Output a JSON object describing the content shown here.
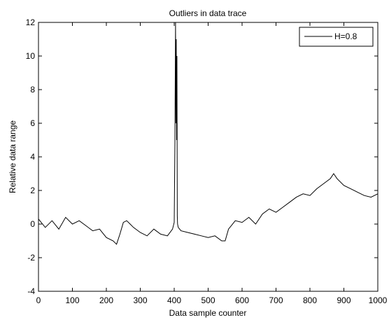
{
  "chart_data": {
    "type": "line",
    "title": "Outliers in data trace",
    "xlabel": "Data sample counter",
    "ylabel": "Relative data range",
    "xlim": [
      0,
      1000
    ],
    "ylim": [
      -4,
      12
    ],
    "xticks": [
      0,
      100,
      200,
      300,
      400,
      500,
      600,
      700,
      800,
      900,
      1000
    ],
    "yticks": [
      -4,
      -2,
      0,
      2,
      4,
      6,
      8,
      10,
      12
    ],
    "grid": false,
    "legend": {
      "position": "top-right",
      "entries": [
        "H=0.8"
      ]
    },
    "series": [
      {
        "name": "H=0.8",
        "color": "#000000",
        "x": [
          0,
          20,
          40,
          60,
          80,
          100,
          120,
          140,
          160,
          180,
          200,
          220,
          230,
          240,
          250,
          260,
          270,
          280,
          300,
          320,
          340,
          360,
          380,
          395,
          400,
          402,
          404,
          405,
          406,
          407,
          408,
          409,
          410,
          412,
          420,
          440,
          460,
          480,
          500,
          520,
          540,
          550,
          560,
          580,
          600,
          620,
          640,
          660,
          680,
          700,
          720,
          740,
          760,
          780,
          800,
          820,
          840,
          860,
          870,
          880,
          900,
          920,
          940,
          960,
          980,
          1000
        ],
        "y": [
          0.3,
          -0.2,
          0.2,
          -0.3,
          0.4,
          0.0,
          0.2,
          -0.1,
          -0.4,
          -0.3,
          -0.8,
          -1.0,
          -1.2,
          -0.6,
          0.1,
          0.2,
          0.0,
          -0.2,
          -0.5,
          -0.7,
          -0.3,
          -0.6,
          -0.7,
          -0.3,
          0.1,
          4.9,
          12.0,
          6.0,
          11.0,
          5.0,
          10.0,
          0.5,
          0.0,
          -0.2,
          -0.4,
          -0.5,
          -0.6,
          -0.7,
          -0.8,
          -0.7,
          -1.0,
          -1.0,
          -0.3,
          0.2,
          0.1,
          0.4,
          0.0,
          0.6,
          0.9,
          0.7,
          1.0,
          1.3,
          1.6,
          1.8,
          1.7,
          2.1,
          2.4,
          2.7,
          3.0,
          2.7,
          2.3,
          2.1,
          1.9,
          1.7,
          1.6,
          1.8
        ]
      }
    ]
  }
}
